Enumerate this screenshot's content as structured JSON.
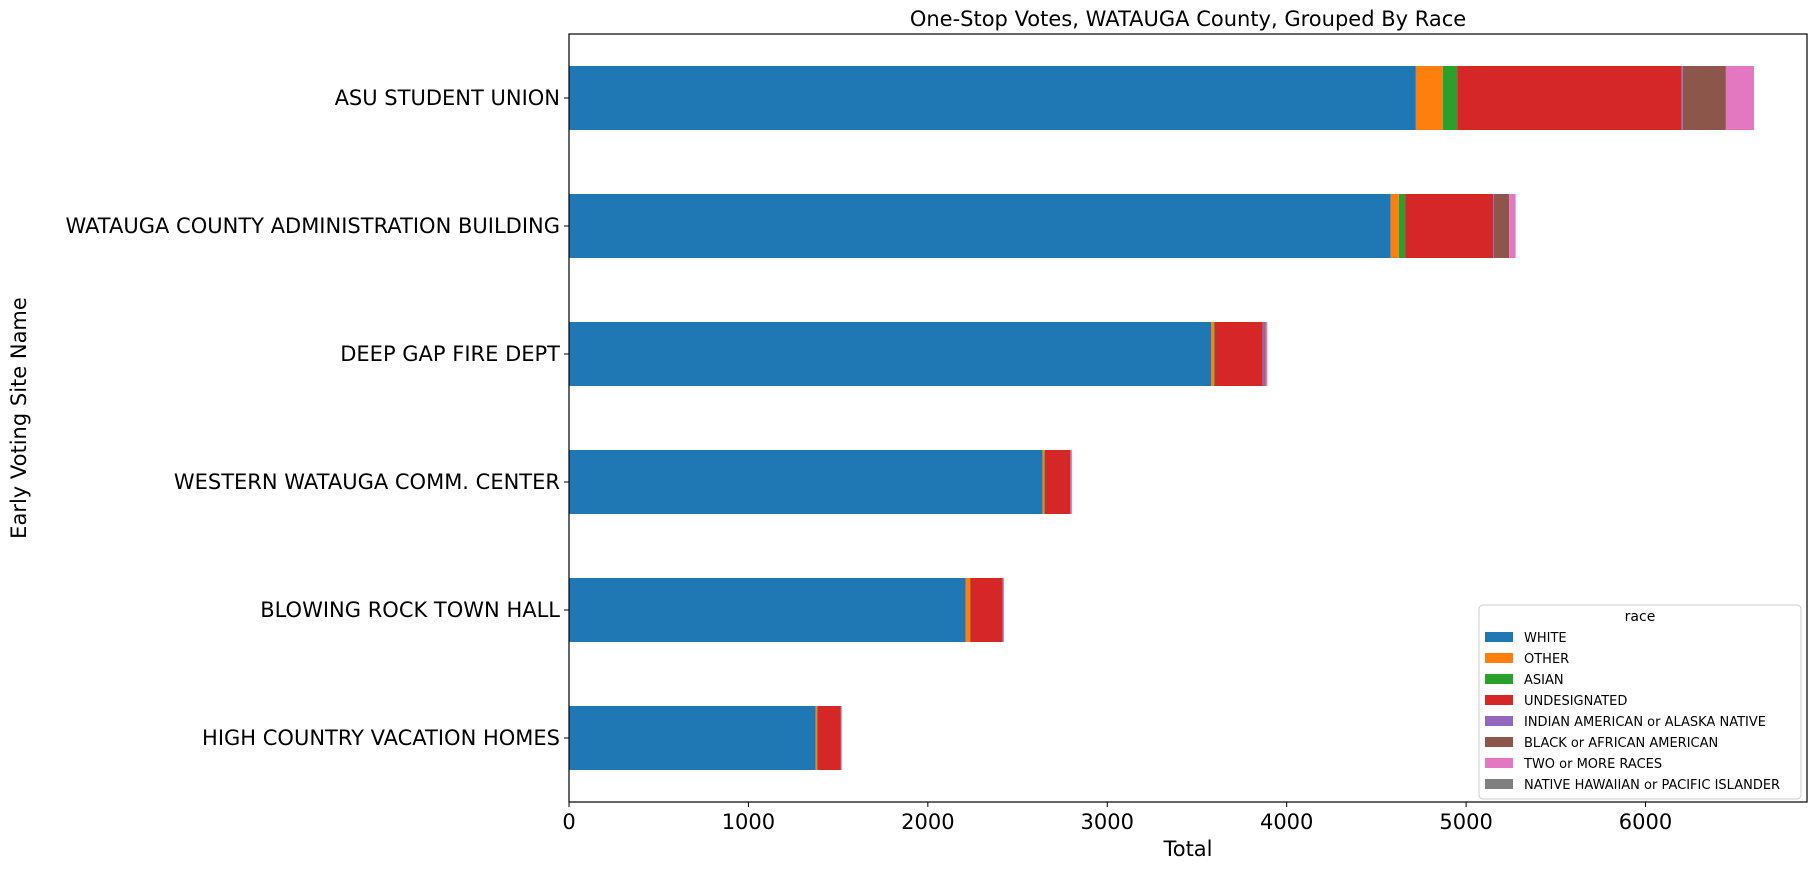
{
  "chart_data": {
    "type": "bar",
    "orientation": "horizontal",
    "stacked": true,
    "title": "One-Stop Votes, WATAUGA County, Grouped By Race",
    "xlabel": "Total",
    "ylabel": "Early Voting Site Name",
    "xlim": [
      0,
      6900
    ],
    "x_ticks": [
      "0",
      "1000",
      "2000",
      "3000",
      "4000",
      "5000",
      "6000"
    ],
    "x_tick_values": [
      0,
      1000,
      2000,
      3000,
      4000,
      5000,
      6000
    ],
    "grid": false,
    "legend_title": "race",
    "legend_position": "bottom-right",
    "categories": [
      "ASU STUDENT UNION",
      "WATAUGA COUNTY ADMINISTRATION BUILDING",
      "DEEP GAP FIRE DEPT",
      "WESTERN WATAUGA COMM. CENTER",
      "BLOWING ROCK TOWN HALL",
      "HIGH COUNTRY VACATION HOMES"
    ],
    "series": [
      {
        "name": "WHITE",
        "color": "#1f77b4",
        "values": [
          4720,
          4580,
          3580,
          2640,
          2210,
          1375
        ]
      },
      {
        "name": "OTHER",
        "color": "#ff7f0e",
        "values": [
          150,
          45,
          15,
          10,
          25,
          8
        ]
      },
      {
        "name": "ASIAN",
        "color": "#2ca02c",
        "values": [
          80,
          35,
          5,
          3,
          2,
          2
        ]
      },
      {
        "name": "UNDESIGNATED",
        "color": "#d62728",
        "values": [
          1250,
          490,
          265,
          140,
          180,
          130
        ]
      },
      {
        "name": "INDIAN AMERICAN or ALASKA NATIVE",
        "color": "#9467bd",
        "values": [
          8,
          5,
          10,
          3,
          2,
          1
        ]
      },
      {
        "name": "BLACK or AFRICAN AMERICAN",
        "color": "#8c564b",
        "values": [
          240,
          85,
          8,
          3,
          2,
          2
        ]
      },
      {
        "name": "TWO or MORE RACES",
        "color": "#e377c2",
        "values": [
          155,
          35,
          8,
          5,
          3,
          2
        ]
      },
      {
        "name": "NATIVE HAWAIIAN or PACIFIC ISLANDER",
        "color": "#7f7f7f",
        "values": [
          2,
          1,
          1,
          0,
          0,
          0
        ]
      }
    ]
  }
}
